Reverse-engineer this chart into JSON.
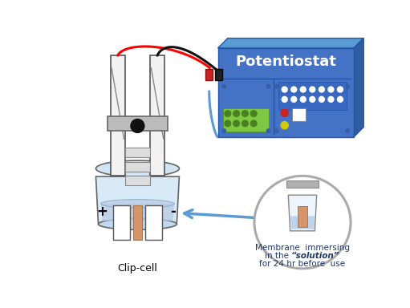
{
  "bg_color": "#ffffff",
  "potentiostat_label": "Potentiostat",
  "clip_cell_label": "Clip-cell",
  "membrane_text_line1": "Membrane  immersing",
  "membrane_text_line2_normal": "in the ",
  "membrane_text_line2_bold_italic": "“solution”",
  "membrane_text_line3": "for 24 hr before  use",
  "plus_label": "+",
  "minus_label": "-",
  "arrow_color": "#5B9BD5",
  "wire_red_color": "#FF0000",
  "wire_black_color": "#111111",
  "pot_body_color": "#4472C4",
  "pot_top_color": "#5B9BD5",
  "pot_side_color": "#2E5DA0",
  "pot_front_color": "#4472C4",
  "beaker_fill": "#C8DCF0",
  "water_fill": "#B8D0E8",
  "clip_bar_color": "#F2F2F2",
  "clip_bar_edge": "#555555",
  "clamp_color": "#BBBBBB",
  "membrane_color": "#D4956A",
  "circle_edge": "#AAAAAA",
  "text_color": "#1F3864",
  "label_fontsize": 9,
  "pot_fontsize": 13
}
